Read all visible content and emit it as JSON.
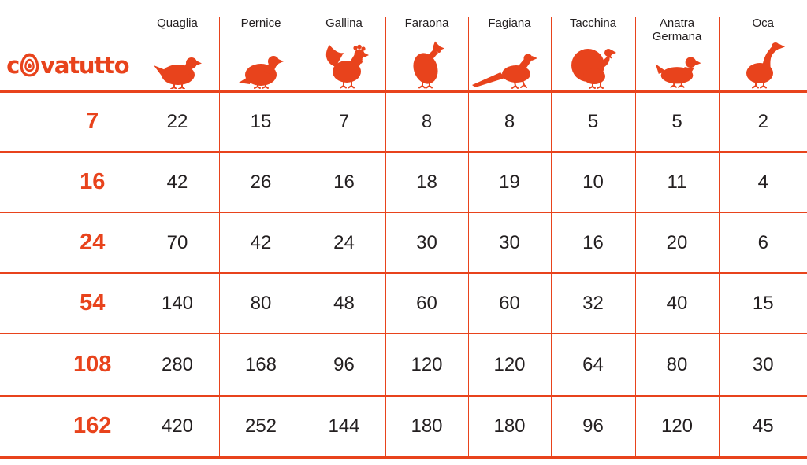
{
  "colors": {
    "accent": "#E8431C",
    "ink": "#231F20",
    "background": "#FFFFFF"
  },
  "brand": {
    "name": "covatutto",
    "wordmark_before_egg": "c",
    "wordmark_after_egg": "vatutto",
    "egg_icon": "egg-logo-icon"
  },
  "chart_data": {
    "type": "table",
    "columns": [
      "Quaglia",
      "Pernice",
      "Gallina",
      "Faraona",
      "Fagiana",
      "Tacchina",
      "Anatra Germana",
      "Oca"
    ],
    "column_icons": [
      "quail-icon",
      "partridge-icon",
      "hen-icon",
      "guinea-fowl-icon",
      "pheasant-icon",
      "turkey-icon",
      "mallard-duck-icon",
      "goose-icon"
    ],
    "row_labels": [
      "7",
      "16",
      "24",
      "54",
      "108",
      "162"
    ],
    "values": [
      [
        22,
        15,
        7,
        8,
        8,
        5,
        5,
        2
      ],
      [
        42,
        26,
        16,
        18,
        19,
        10,
        11,
        4
      ],
      [
        70,
        42,
        24,
        30,
        30,
        16,
        20,
        6
      ],
      [
        140,
        80,
        48,
        60,
        60,
        32,
        40,
        15
      ],
      [
        280,
        168,
        96,
        120,
        120,
        64,
        80,
        30
      ],
      [
        420,
        252,
        144,
        180,
        180,
        96,
        120,
        45
      ]
    ],
    "legend_position": "none",
    "grid": "on"
  }
}
